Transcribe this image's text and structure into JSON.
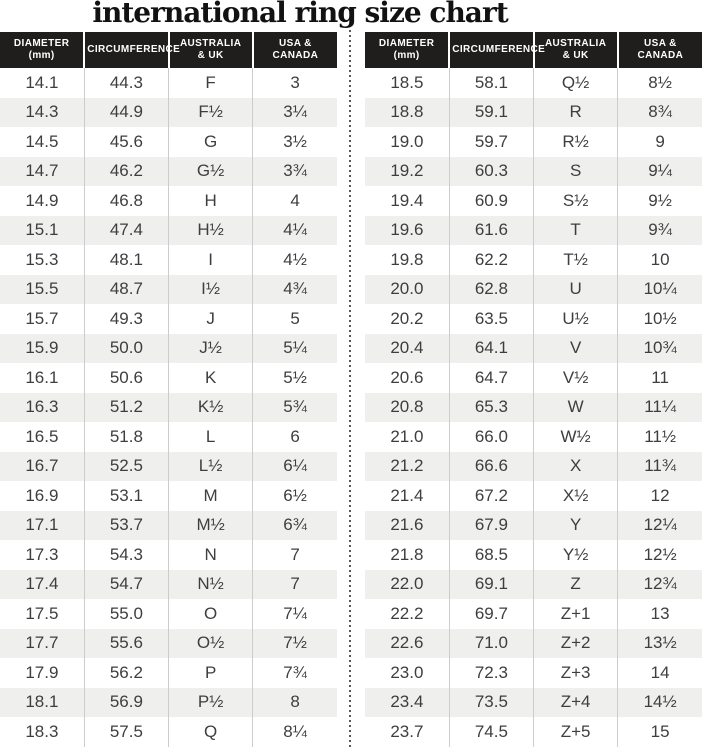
{
  "page": {
    "title": "international ring size chart"
  },
  "colors": {
    "header_bg": "#201d1d",
    "header_text": "#ffffff",
    "row_alt_bg": "#efefee",
    "body_text": "#3e3e3e",
    "column_line": "#cccccc",
    "divider_dots": "#585858"
  },
  "table_headers": [
    {
      "line1": "DIAMETER",
      "line2": "(mm)"
    },
    {
      "line1": "CIRCUMFERENCE",
      "line2": ""
    },
    {
      "line1": "AUSTRALIA",
      "line2": "& UK"
    },
    {
      "line1": "USA &",
      "line2": "CANADA"
    }
  ],
  "chart_data": {
    "type": "table",
    "title": "international ring size chart",
    "columns": [
      "DIAMETER (mm)",
      "CIRCUMFERENCE",
      "AUSTRALIA & UK",
      "USA & CANADA"
    ],
    "left_table_rows": [
      [
        "14.1",
        "44.3",
        "F",
        "3"
      ],
      [
        "14.3",
        "44.9",
        "F½",
        "3¼"
      ],
      [
        "14.5",
        "45.6",
        "G",
        "3½"
      ],
      [
        "14.7",
        "46.2",
        "G½",
        "3¾"
      ],
      [
        "14.9",
        "46.8",
        "H",
        "4"
      ],
      [
        "15.1",
        "47.4",
        "H½",
        "4¼"
      ],
      [
        "15.3",
        "48.1",
        "I",
        "4½"
      ],
      [
        "15.5",
        "48.7",
        "I½",
        "4¾"
      ],
      [
        "15.7",
        "49.3",
        "J",
        "5"
      ],
      [
        "15.9",
        "50.0",
        "J½",
        "5¼"
      ],
      [
        "16.1",
        "50.6",
        "K",
        "5½"
      ],
      [
        "16.3",
        "51.2",
        "K½",
        "5¾"
      ],
      [
        "16.5",
        "51.8",
        "L",
        "6"
      ],
      [
        "16.7",
        "52.5",
        "L½",
        "6¼"
      ],
      [
        "16.9",
        "53.1",
        "M",
        "6½"
      ],
      [
        "17.1",
        "53.7",
        "M½",
        "6¾"
      ],
      [
        "17.3",
        "54.3",
        "N",
        "7"
      ],
      [
        "17.4",
        "54.7",
        "N½",
        "7"
      ],
      [
        "17.5",
        "55.0",
        "O",
        "7¼"
      ],
      [
        "17.7",
        "55.6",
        "O½",
        "7½"
      ],
      [
        "17.9",
        "56.2",
        "P",
        "7¾"
      ],
      [
        "18.1",
        "56.9",
        "P½",
        "8"
      ],
      [
        "18.3",
        "57.5",
        "Q",
        "8¼"
      ]
    ],
    "right_table_rows": [
      [
        "18.5",
        "58.1",
        "Q½",
        "8½"
      ],
      [
        "18.8",
        "59.1",
        "R",
        "8¾"
      ],
      [
        "19.0",
        "59.7",
        "R½",
        "9"
      ],
      [
        "19.2",
        "60.3",
        "S",
        "9¼"
      ],
      [
        "19.4",
        "60.9",
        "S½",
        "9½"
      ],
      [
        "19.6",
        "61.6",
        "T",
        "9¾"
      ],
      [
        "19.8",
        "62.2",
        "T½",
        "10"
      ],
      [
        "20.0",
        "62.8",
        "U",
        "10¼"
      ],
      [
        "20.2",
        "63.5",
        "U½",
        "10½"
      ],
      [
        "20.4",
        "64.1",
        "V",
        "10¾"
      ],
      [
        "20.6",
        "64.7",
        "V½",
        "11"
      ],
      [
        "20.8",
        "65.3",
        "W",
        "11¼"
      ],
      [
        "21.0",
        "66.0",
        "W½",
        "11½"
      ],
      [
        "21.2",
        "66.6",
        "X",
        "11¾"
      ],
      [
        "21.4",
        "67.2",
        "X½",
        "12"
      ],
      [
        "21.6",
        "67.9",
        "Y",
        "12¼"
      ],
      [
        "21.8",
        "68.5",
        "Y½",
        "12½"
      ],
      [
        "22.0",
        "69.1",
        "Z",
        "12¾"
      ],
      [
        "22.2",
        "69.7",
        "Z+1",
        "13"
      ],
      [
        "22.6",
        "71.0",
        "Z+2",
        "13½"
      ],
      [
        "23.0",
        "72.3",
        "Z+3",
        "14"
      ],
      [
        "23.4",
        "73.5",
        "Z+4",
        "14½"
      ],
      [
        "23.7",
        "74.5",
        "Z+5",
        "15"
      ]
    ]
  }
}
